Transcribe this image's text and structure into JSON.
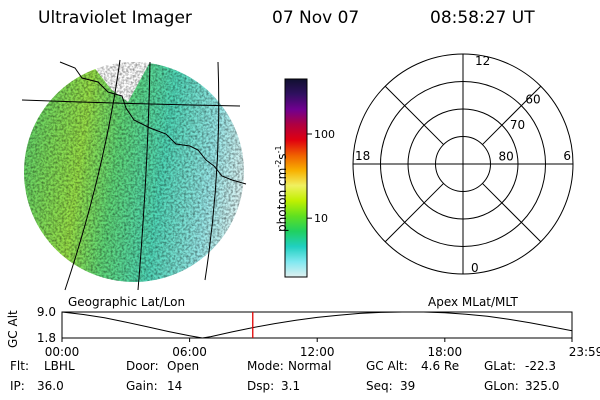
{
  "header": {
    "title": "Ultraviolet Imager",
    "date": "07 Nov 07",
    "time": "08:58:27 UT"
  },
  "colors": {
    "low": "#d8f0f0",
    "cyan": "#60e0e0",
    "green": "#40c080",
    "yellowgreen": "#a8e040",
    "accent_line": "#e00000"
  },
  "geo_panel": {
    "label": "Geographic Lat/Lon"
  },
  "colorbar": {
    "unit_main": "photon cm",
    "unit_exp1": "-2",
    "unit_s": "s",
    "unit_exp2": "-1",
    "ticks": [
      {
        "label": "100",
        "value": 100
      },
      {
        "label": "10",
        "value": 10
      }
    ],
    "range": [
      2,
      450
    ],
    "stops": [
      "#101030",
      "#301060",
      "#700090",
      "#b00040",
      "#e00010",
      "#f06000",
      "#f8b000",
      "#f0f060",
      "#c0f000",
      "#60e020",
      "#20d060",
      "#20d0c0",
      "#80e8f0",
      "#e0f0f0"
    ]
  },
  "polar_panel": {
    "label": "Apex  MLat/MLT",
    "mlt_labels": [
      {
        "label": "12",
        "pos": "top"
      },
      {
        "label": "18",
        "pos": "left"
      },
      {
        "label": "6",
        "pos": "right"
      },
      {
        "label": "0",
        "pos": "bottom"
      }
    ],
    "lat_labels": [
      {
        "label": "60",
        "lat": 60
      },
      {
        "label": "70",
        "lat": 70
      },
      {
        "label": "80",
        "lat": 80
      }
    ]
  },
  "chart_data": {
    "type": "line",
    "title": "",
    "ylabel": "GC Alt",
    "y_ticks": [
      "9.0",
      "1.8"
    ],
    "ylim": [
      1.8,
      9.0
    ],
    "x_ticks": [
      "00:00",
      "06:00",
      "12:00",
      "18:00",
      "23:59"
    ],
    "xlim_hours": [
      0,
      23.98
    ],
    "marker_time_hours": 8.97,
    "series": [
      {
        "x": [
          0,
          1,
          2,
          3,
          4,
          5,
          6,
          6.6,
          7,
          8,
          9,
          10,
          11,
          12,
          13,
          14,
          15,
          16,
          17,
          18,
          19,
          20,
          21,
          22,
          23,
          23.98
        ],
        "y": [
          9.0,
          8.3,
          7.4,
          6.2,
          4.9,
          3.6,
          2.4,
          1.8,
          2.2,
          3.5,
          4.7,
          5.8,
          6.7,
          7.5,
          8.1,
          8.6,
          8.9,
          9.0,
          9.0,
          8.8,
          8.4,
          7.8,
          7.0,
          6.0,
          4.9,
          3.8
        ]
      }
    ]
  },
  "info": {
    "row1": [
      {
        "key": "Flt:",
        "value": "LBHL"
      },
      {
        "key": "Door:",
        "value": "Open"
      },
      {
        "key": "Mode:",
        "value": "Normal"
      },
      {
        "key": "GC Alt:",
        "value": "4.6 Re"
      },
      {
        "key": "GLat:",
        "value": "-22.3"
      }
    ],
    "row2": [
      {
        "key": "IP:",
        "value": "36.0"
      },
      {
        "key": "Gain:",
        "value": "14"
      },
      {
        "key": "Dsp:",
        "value": "3.1"
      },
      {
        "key": "Seq:",
        "value": "39"
      },
      {
        "key": "GLon:",
        "value": "325.0"
      }
    ]
  }
}
